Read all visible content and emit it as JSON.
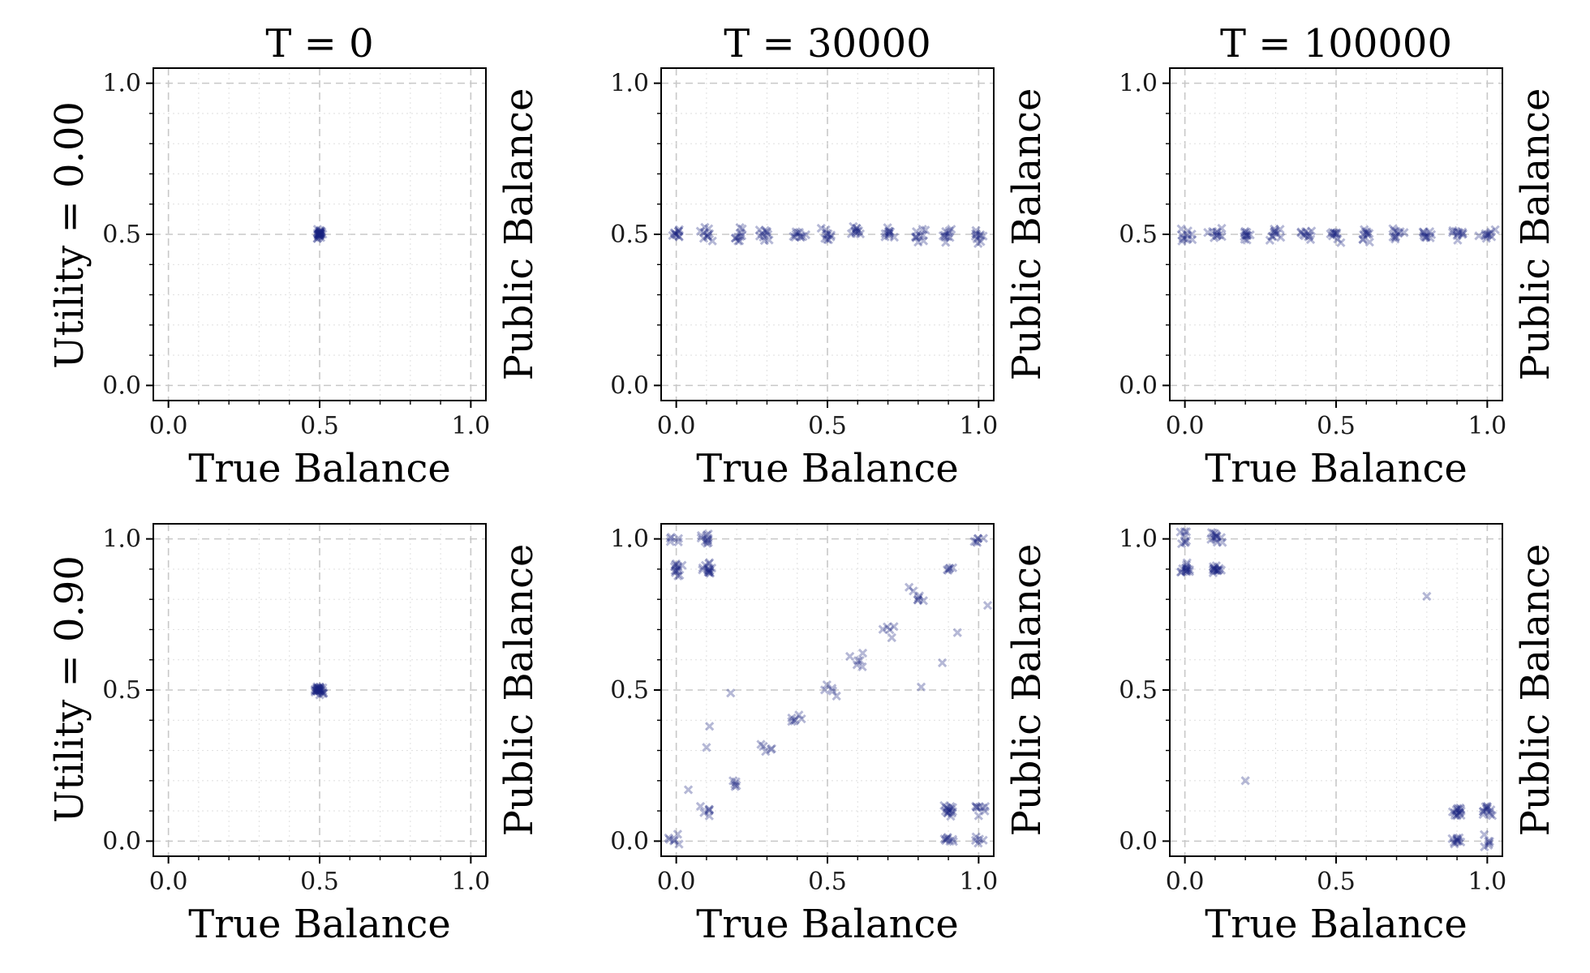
{
  "figure": {
    "column_titles": [
      "T = 0",
      "T = 30000",
      "T = 100000"
    ],
    "row_titles": [
      "Utility = 0.00",
      "Utility = 0.90"
    ],
    "marker_color": "#1a237e"
  },
  "chart_data": [
    {
      "type": "scatter",
      "row": 0,
      "col": 0,
      "title": "T = 0",
      "row_label": "Utility = 0.00",
      "xlabel": "True Balance",
      "ylabel": "Public Balance",
      "xlim": [
        -0.05,
        1.05
      ],
      "ylim": [
        -0.05,
        1.05
      ],
      "xticks": [
        "0.0",
        "0.5",
        "1.0"
      ],
      "yticks": [
        "0.0",
        "0.5",
        "1.0"
      ],
      "grid": true,
      "marker": "x",
      "clusters": [
        {
          "x": 0.5,
          "y": 0.5,
          "n": 30,
          "spread": 0.014
        }
      ]
    },
    {
      "type": "scatter",
      "row": 0,
      "col": 1,
      "title": "T = 30000",
      "xlabel": "True Balance",
      "ylabel": "Public Balance",
      "xlim": [
        -0.05,
        1.05
      ],
      "ylim": [
        -0.05,
        1.05
      ],
      "xticks": [
        "0.0",
        "0.5",
        "1.0"
      ],
      "yticks": [
        "0.0",
        "0.5",
        "1.0"
      ],
      "grid": true,
      "marker": "x",
      "clusters": [
        {
          "x": 0.0,
          "y": 0.5,
          "n": 10,
          "spread": 0.02
        },
        {
          "x": 0.1,
          "y": 0.5,
          "n": 10,
          "spread": 0.02
        },
        {
          "x": 0.2,
          "y": 0.5,
          "n": 10,
          "spread": 0.02
        },
        {
          "x": 0.3,
          "y": 0.5,
          "n": 10,
          "spread": 0.02
        },
        {
          "x": 0.4,
          "y": 0.5,
          "n": 10,
          "spread": 0.02
        },
        {
          "x": 0.5,
          "y": 0.5,
          "n": 10,
          "spread": 0.02
        },
        {
          "x": 0.6,
          "y": 0.5,
          "n": 10,
          "spread": 0.02
        },
        {
          "x": 0.7,
          "y": 0.5,
          "n": 10,
          "spread": 0.02
        },
        {
          "x": 0.8,
          "y": 0.5,
          "n": 10,
          "spread": 0.02
        },
        {
          "x": 0.9,
          "y": 0.5,
          "n": 10,
          "spread": 0.02
        },
        {
          "x": 1.0,
          "y": 0.5,
          "n": 10,
          "spread": 0.02
        }
      ]
    },
    {
      "type": "scatter",
      "row": 0,
      "col": 2,
      "title": "T = 100000",
      "xlabel": "True Balance",
      "ylabel": "Public Balance",
      "xlim": [
        -0.05,
        1.05
      ],
      "ylim": [
        -0.05,
        1.05
      ],
      "xticks": [
        "0.0",
        "0.5",
        "1.0"
      ],
      "yticks": [
        "0.0",
        "0.5",
        "1.0"
      ],
      "grid": true,
      "marker": "x",
      "clusters": [
        {
          "x": 0.0,
          "y": 0.5,
          "n": 10,
          "spread": 0.02
        },
        {
          "x": 0.1,
          "y": 0.5,
          "n": 10,
          "spread": 0.02
        },
        {
          "x": 0.2,
          "y": 0.5,
          "n": 10,
          "spread": 0.02
        },
        {
          "x": 0.3,
          "y": 0.5,
          "n": 10,
          "spread": 0.02
        },
        {
          "x": 0.4,
          "y": 0.5,
          "n": 10,
          "spread": 0.02
        },
        {
          "x": 0.5,
          "y": 0.5,
          "n": 10,
          "spread": 0.02
        },
        {
          "x": 0.6,
          "y": 0.5,
          "n": 10,
          "spread": 0.02
        },
        {
          "x": 0.7,
          "y": 0.5,
          "n": 10,
          "spread": 0.02
        },
        {
          "x": 0.8,
          "y": 0.5,
          "n": 10,
          "spread": 0.02
        },
        {
          "x": 0.9,
          "y": 0.5,
          "n": 10,
          "spread": 0.02
        },
        {
          "x": 1.0,
          "y": 0.5,
          "n": 10,
          "spread": 0.02
        }
      ]
    },
    {
      "type": "scatter",
      "row": 1,
      "col": 0,
      "title": "",
      "row_label": "Utility = 0.90",
      "xlabel": "True Balance",
      "ylabel": "Public Balance",
      "xlim": [
        -0.05,
        1.05
      ],
      "ylim": [
        -0.05,
        1.05
      ],
      "xticks": [
        "0.0",
        "0.5",
        "1.0"
      ],
      "yticks": [
        "0.0",
        "0.5",
        "1.0"
      ],
      "grid": true,
      "marker": "x",
      "clusters": [
        {
          "x": 0.5,
          "y": 0.5,
          "n": 30,
          "spread": 0.014
        }
      ]
    },
    {
      "type": "scatter",
      "row": 1,
      "col": 1,
      "title": "",
      "xlabel": "True Balance",
      "ylabel": "Public Balance",
      "xlim": [
        -0.05,
        1.05
      ],
      "ylim": [
        -0.05,
        1.05
      ],
      "xticks": [
        "0.0",
        "0.5",
        "1.0"
      ],
      "yticks": [
        "0.0",
        "0.5",
        "1.0"
      ],
      "grid": true,
      "marker": "x",
      "clusters": [
        {
          "x": 0.0,
          "y": 0.9,
          "n": 12,
          "spread": 0.02
        },
        {
          "x": 0.0,
          "y": 1.0,
          "n": 5,
          "spread": 0.02
        },
        {
          "x": 0.1,
          "y": 0.9,
          "n": 14,
          "spread": 0.018
        },
        {
          "x": 0.1,
          "y": 1.0,
          "n": 10,
          "spread": 0.018
        },
        {
          "x": 0.0,
          "y": 0.0,
          "n": 6,
          "spread": 0.02
        },
        {
          "x": 0.1,
          "y": 0.1,
          "n": 6,
          "spread": 0.02
        },
        {
          "x": 0.2,
          "y": 0.2,
          "n": 5,
          "spread": 0.02
        },
        {
          "x": 0.3,
          "y": 0.3,
          "n": 4,
          "spread": 0.02
        },
        {
          "x": 0.4,
          "y": 0.4,
          "n": 6,
          "spread": 0.02
        },
        {
          "x": 0.5,
          "y": 0.5,
          "n": 4,
          "spread": 0.02
        },
        {
          "x": 0.6,
          "y": 0.6,
          "n": 6,
          "spread": 0.02
        },
        {
          "x": 0.7,
          "y": 0.7,
          "n": 4,
          "spread": 0.02
        },
        {
          "x": 0.8,
          "y": 0.8,
          "n": 6,
          "spread": 0.02
        },
        {
          "x": 0.9,
          "y": 0.9,
          "n": 5,
          "spread": 0.02
        },
        {
          "x": 1.0,
          "y": 1.0,
          "n": 6,
          "spread": 0.018
        },
        {
          "x": 0.9,
          "y": 0.1,
          "n": 14,
          "spread": 0.018
        },
        {
          "x": 0.9,
          "y": 0.0,
          "n": 8,
          "spread": 0.018
        },
        {
          "x": 1.0,
          "y": 0.1,
          "n": 8,
          "spread": 0.02
        },
        {
          "x": 1.0,
          "y": 0.0,
          "n": 5,
          "spread": 0.02
        }
      ],
      "outliers": [
        {
          "x": 0.04,
          "y": 0.17
        },
        {
          "x": 0.11,
          "y": 0.38
        },
        {
          "x": 0.1,
          "y": 0.31
        },
        {
          "x": 0.18,
          "y": 0.49
        },
        {
          "x": 0.28,
          "y": 0.32
        },
        {
          "x": 0.53,
          "y": 0.48
        },
        {
          "x": 0.72,
          "y": 0.71
        },
        {
          "x": 0.81,
          "y": 0.51
        },
        {
          "x": 0.88,
          "y": 0.59
        },
        {
          "x": 0.93,
          "y": 0.69
        },
        {
          "x": 1.03,
          "y": 0.78
        },
        {
          "x": 0.77,
          "y": 0.84
        }
      ]
    },
    {
      "type": "scatter",
      "row": 1,
      "col": 2,
      "title": "",
      "xlabel": "True Balance",
      "ylabel": "Public Balance",
      "xlim": [
        -0.05,
        1.05
      ],
      "ylim": [
        -0.05,
        1.05
      ],
      "xticks": [
        "0.0",
        "0.5",
        "1.0"
      ],
      "yticks": [
        "0.0",
        "0.5",
        "1.0"
      ],
      "grid": true,
      "marker": "x",
      "clusters": [
        {
          "x": 0.0,
          "y": 0.9,
          "n": 14,
          "spread": 0.018
        },
        {
          "x": 0.0,
          "y": 1.0,
          "n": 8,
          "spread": 0.02
        },
        {
          "x": 0.1,
          "y": 0.9,
          "n": 14,
          "spread": 0.018
        },
        {
          "x": 0.1,
          "y": 1.0,
          "n": 12,
          "spread": 0.018
        },
        {
          "x": 0.9,
          "y": 0.1,
          "n": 14,
          "spread": 0.018
        },
        {
          "x": 0.9,
          "y": 0.0,
          "n": 10,
          "spread": 0.018
        },
        {
          "x": 1.0,
          "y": 0.1,
          "n": 12,
          "spread": 0.018
        },
        {
          "x": 1.0,
          "y": 0.0,
          "n": 6,
          "spread": 0.02
        }
      ],
      "outliers": [
        {
          "x": 0.2,
          "y": 0.2
        },
        {
          "x": 0.8,
          "y": 0.81
        }
      ]
    }
  ]
}
